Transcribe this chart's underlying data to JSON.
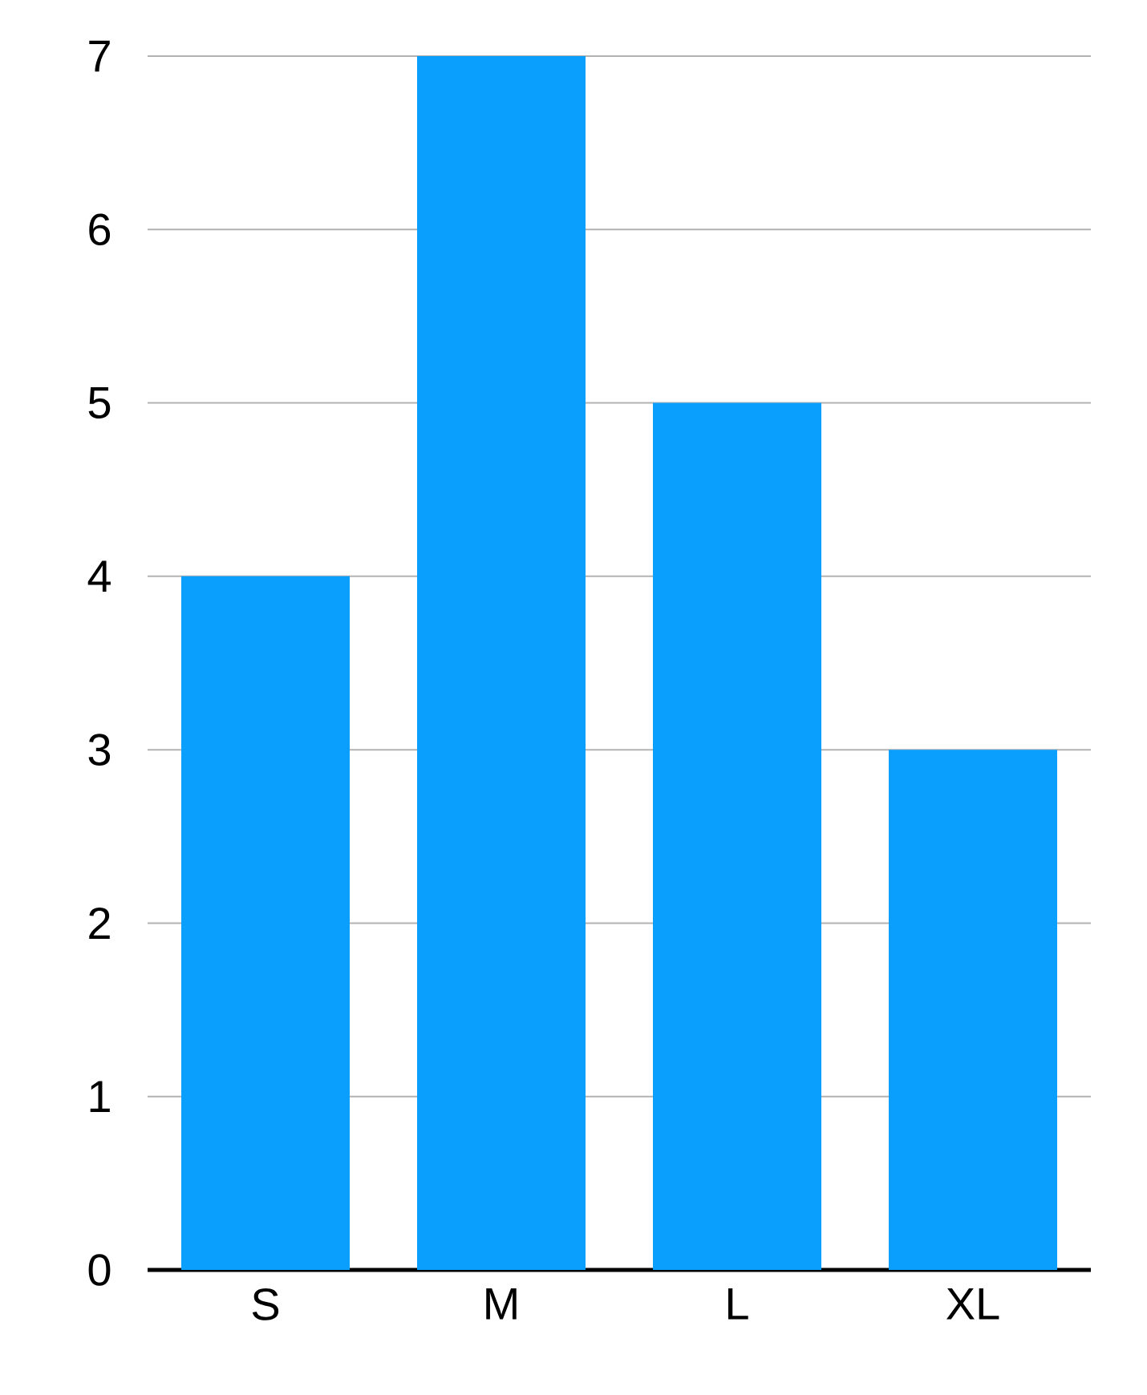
{
  "chart_data": {
    "type": "bar",
    "categories": [
      "S",
      "M",
      "L",
      "XL"
    ],
    "values": [
      4,
      7,
      5,
      3
    ],
    "color": "#0a9ffc",
    "ylim": [
      0,
      7
    ],
    "yticks": [
      0,
      1,
      2,
      3,
      4,
      5,
      6,
      7
    ],
    "grid": "y"
  }
}
